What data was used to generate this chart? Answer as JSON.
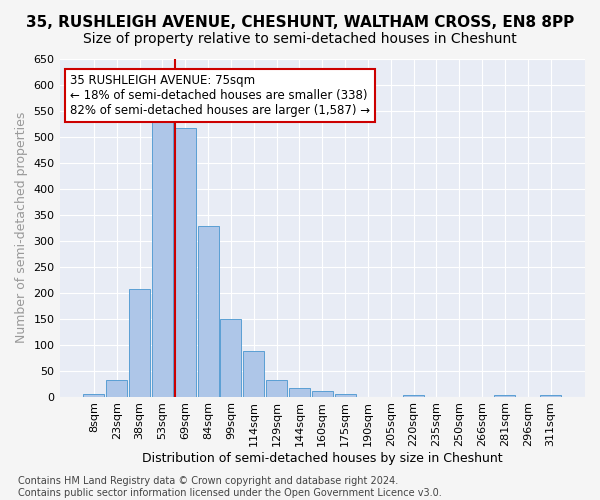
{
  "title": "35, RUSHLEIGH AVENUE, CHESHUNT, WALTHAM CROSS, EN8 8PP",
  "subtitle": "Size of property relative to semi-detached houses in Cheshunt",
  "xlabel": "Distribution of semi-detached houses by size in Cheshunt",
  "ylabel": "Number of semi-detached properties",
  "bin_labels": [
    "8sqm",
    "23sqm",
    "38sqm",
    "53sqm",
    "69sqm",
    "84sqm",
    "99sqm",
    "114sqm",
    "129sqm",
    "144sqm",
    "160sqm",
    "175sqm",
    "190sqm",
    "205sqm",
    "220sqm",
    "235sqm",
    "250sqm",
    "266sqm",
    "281sqm",
    "296sqm",
    "311sqm"
  ],
  "bar_values": [
    5,
    32,
    208,
    540,
    517,
    329,
    150,
    88,
    31,
    16,
    10,
    5,
    0,
    0,
    4,
    0,
    0,
    0,
    4,
    0,
    4
  ],
  "bar_color": "#aec6e8",
  "bar_edgecolor": "#5a9fd4",
  "background_color": "#e8ecf5",
  "grid_color": "#ffffff",
  "vline_color": "#cc0000",
  "annotation_text": "35 RUSHLEIGH AVENUE: 75sqm\n← 18% of semi-detached houses are smaller (338)\n82% of semi-detached houses are larger (1,587) →",
  "annotation_box_color": "#ffffff",
  "annotation_border_color": "#cc0000",
  "ylim": [
    0,
    650
  ],
  "yticks": [
    0,
    50,
    100,
    150,
    200,
    250,
    300,
    350,
    400,
    450,
    500,
    550,
    600,
    650
  ],
  "footnote": "Contains HM Land Registry data © Crown copyright and database right 2024.\nContains public sector information licensed under the Open Government Licence v3.0.",
  "title_fontsize": 11,
  "subtitle_fontsize": 10,
  "xlabel_fontsize": 9,
  "ylabel_fontsize": 9,
  "tick_fontsize": 8,
  "annot_fontsize": 8.5,
  "footnote_fontsize": 7,
  "vline_pos": 3.54
}
